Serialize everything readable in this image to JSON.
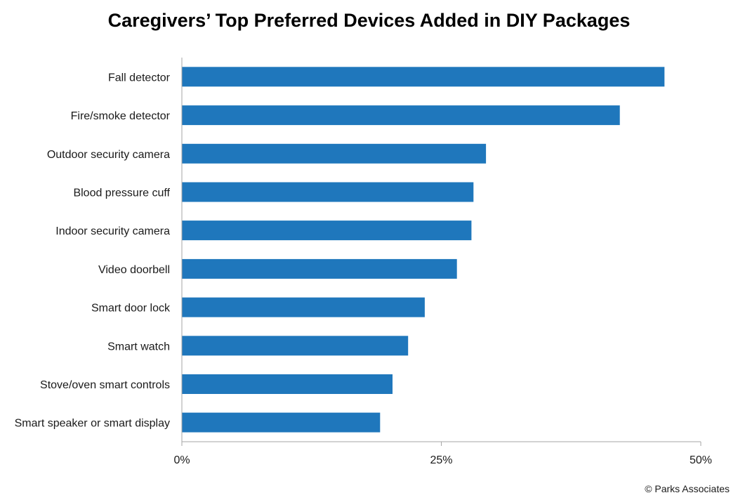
{
  "chart_data": {
    "type": "bar",
    "orientation": "horizontal",
    "title": "Caregivers’ Top Preferred Devices Added in DIY Packages",
    "categories": [
      "Fall detector",
      "Fire/smoke detector",
      "Outdoor security camera",
      "Blood pressure cuff",
      "Indoor security camera",
      "Video doorbell",
      "Smart door lock",
      "Smart watch",
      "Stove/oven smart controls",
      "Smart speaker or smart display"
    ],
    "values": [
      46.5,
      42.2,
      29.3,
      28.1,
      27.9,
      26.5,
      23.4,
      21.8,
      20.3,
      19.1
    ],
    "unit": "%",
    "xlim": [
      0,
      50
    ],
    "x_ticks": [
      0,
      25,
      50
    ],
    "x_tick_labels": [
      "0%",
      "25%",
      "50%"
    ],
    "grid": false,
    "legend": "none",
    "bar_color": "#1f77bc"
  },
  "credit": "© Parks Associates"
}
